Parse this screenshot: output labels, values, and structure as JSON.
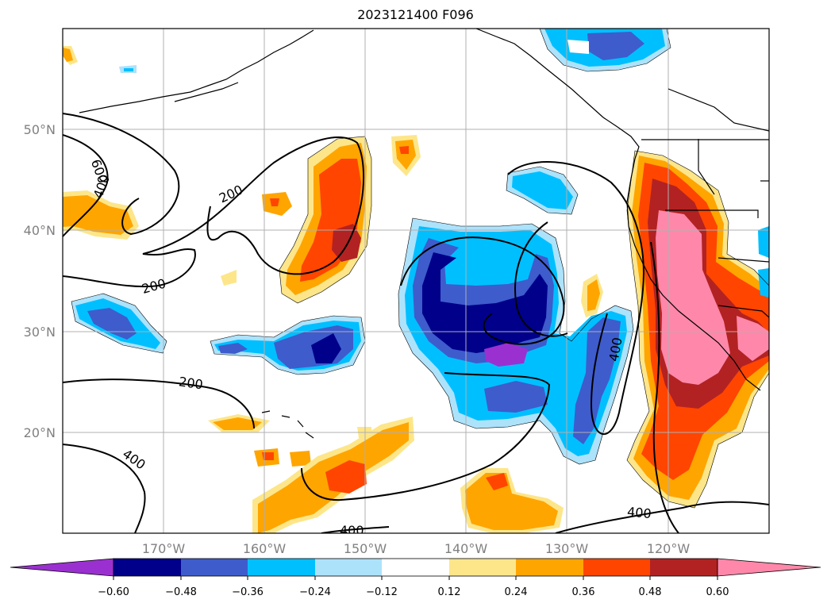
{
  "title": "2023121400 F096",
  "map": {
    "lat_labels": [
      "50°N",
      "40°N",
      "30°N",
      "20°N"
    ],
    "lon_labels": [
      "170°W",
      "160°W",
      "150°W",
      "140°W",
      "130°W",
      "120°W"
    ],
    "contour_labels": [
      "600",
      "400",
      "200",
      "200",
      "200",
      "400",
      "400",
      "400",
      "400"
    ]
  },
  "colorbar": {
    "ticks": [
      "−0.60",
      "−0.48",
      "−0.36",
      "−0.24",
      "−0.12",
      "0.12",
      "0.24",
      "0.36",
      "0.48",
      "0.60"
    ],
    "colors": [
      "#9b30d0",
      "#00008b",
      "#3e5ccc",
      "#00bfff",
      "#ade2fb",
      "#ffffff",
      "#fde68a",
      "#ffa500",
      "#ff4500",
      "#b22222",
      "#ff88aa"
    ]
  },
  "colors": {
    "purple": "#9b30d0",
    "navy": "#00008b",
    "blue": "#3e5ccc",
    "sky": "#00bfff",
    "light_blue": "#ade2fb",
    "light_yellow": "#fde68a",
    "orange": "#ffa500",
    "red_orange": "#ff4500",
    "dark_red": "#b22222",
    "pink": "#ff88aa"
  }
}
